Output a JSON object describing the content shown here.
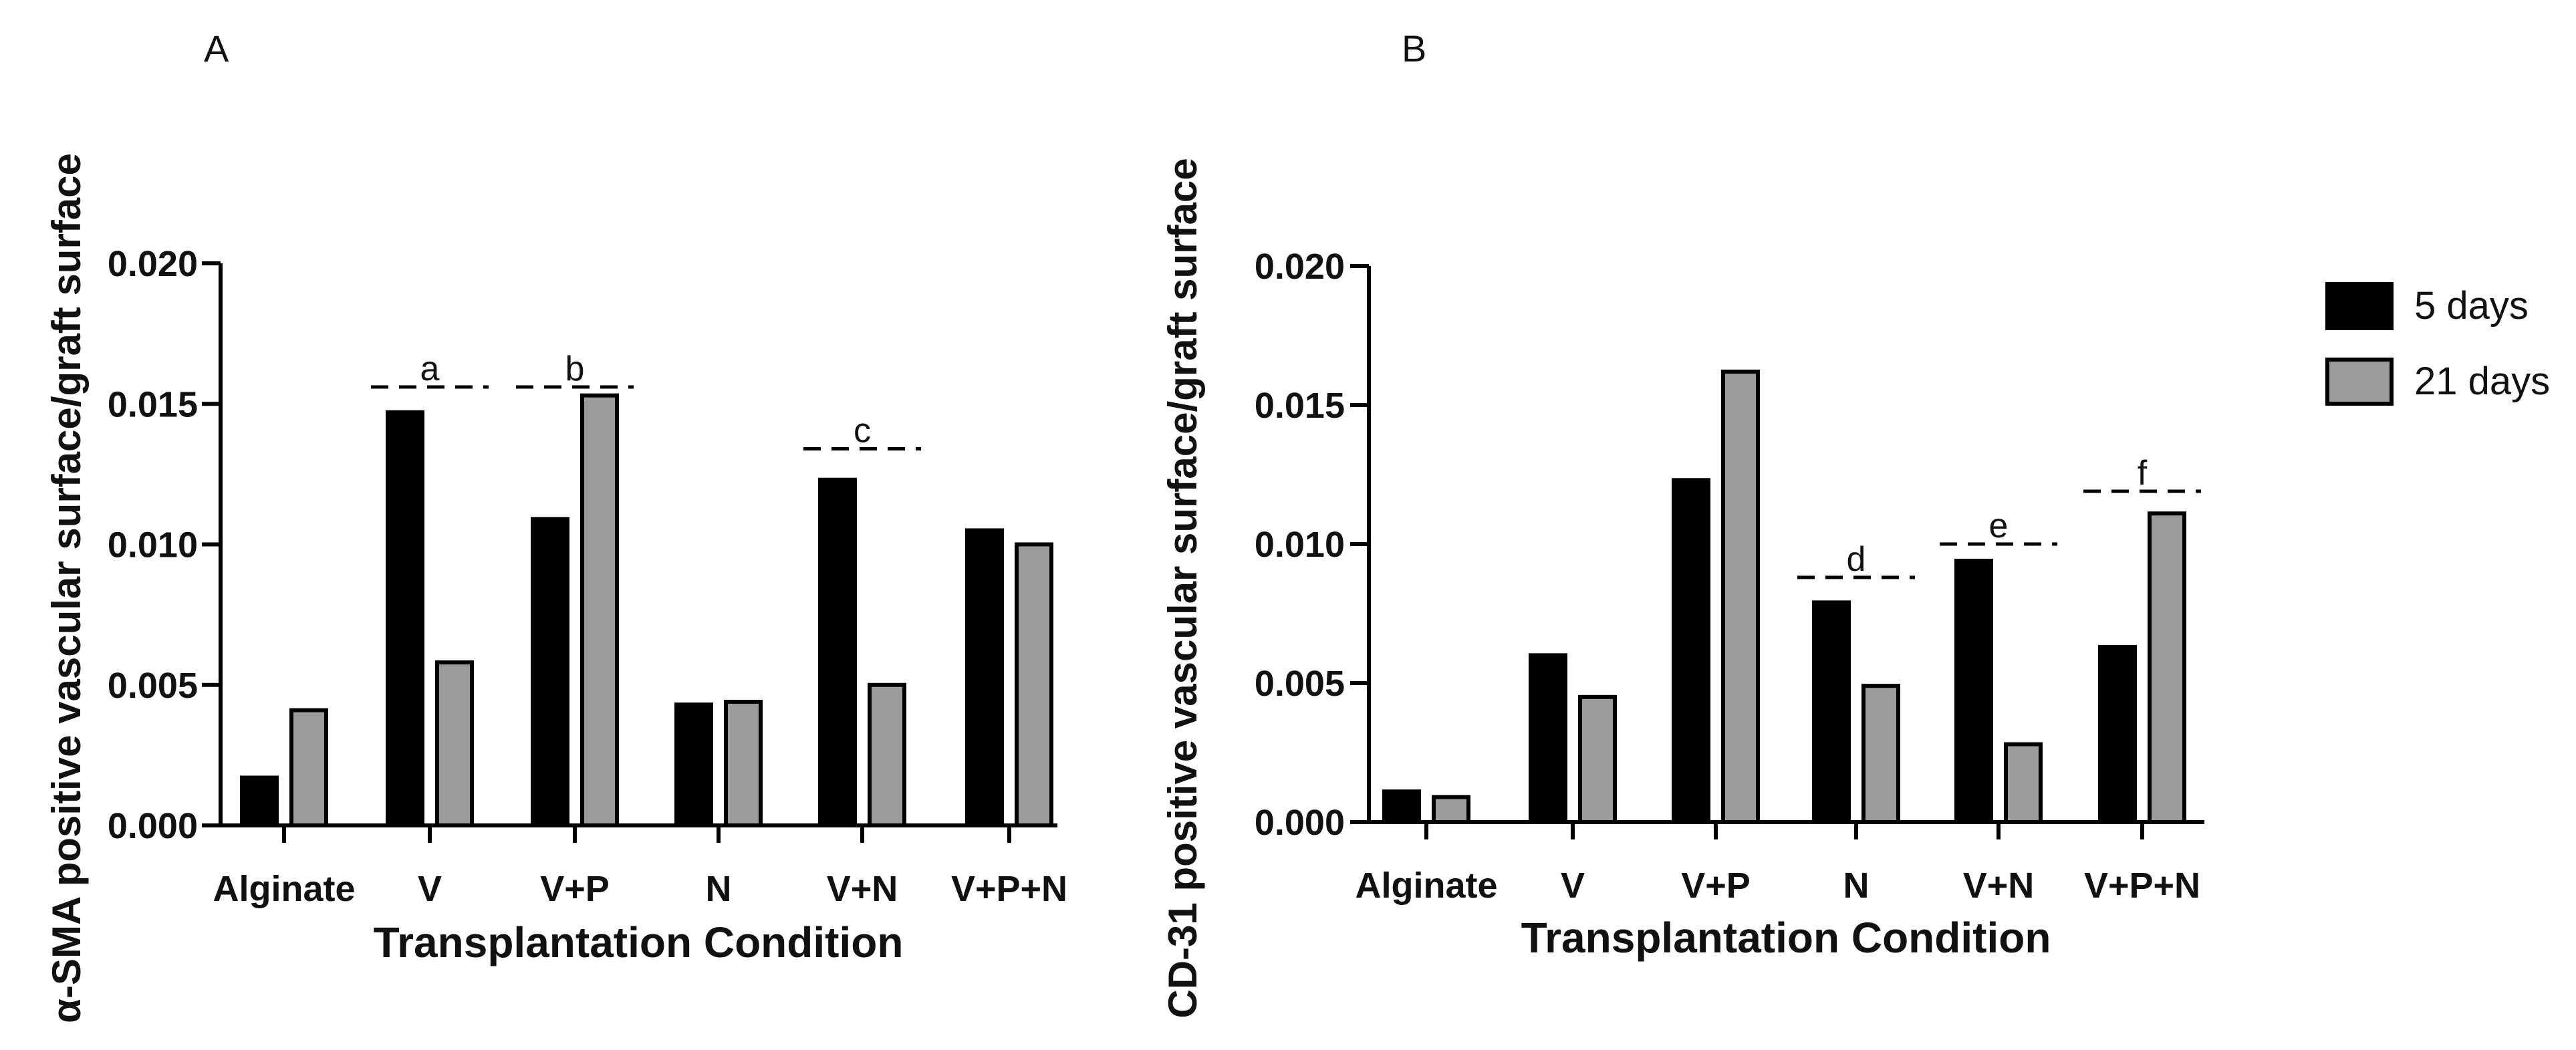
{
  "colors": {
    "series_5_days": "#000000",
    "series_21_days": "#9b9b9b",
    "outline": "#000000"
  },
  "legend": {
    "placement": "right",
    "items": [
      {
        "label": "5 days",
        "color": "#000000"
      },
      {
        "label": "21 days",
        "color": "#9b9b9b"
      }
    ]
  },
  "chart_data": [
    {
      "panel": "A",
      "type": "bar",
      "ylabel": "α-SMA  positive vascular surface/graft surface",
      "xlabel": "Transplantation Condition",
      "categories": [
        "Alginate",
        "V",
        "V+P",
        "N",
        "V+N",
        "V+P+N"
      ],
      "ylim": [
        0,
        0.02
      ],
      "yticks": [
        "0.000",
        "0.005",
        "0.010",
        "0.015",
        "0.020"
      ],
      "series": [
        {
          "name": "5 days",
          "values": [
            0.0017,
            0.0147,
            0.0109,
            0.0043,
            0.0123,
            0.0105
          ]
        },
        {
          "name": "21 days",
          "values": [
            0.0041,
            0.0058,
            0.0153,
            0.0044,
            0.005,
            0.01
          ]
        }
      ],
      "annotations": [
        {
          "label": "a",
          "category": "V",
          "y": 0.0156
        },
        {
          "label": "b",
          "category": "V+P",
          "y": 0.0156
        },
        {
          "label": "c",
          "category": "V+N",
          "y": 0.0134
        }
      ]
    },
    {
      "panel": "B",
      "type": "bar",
      "ylabel": "CD-31  positive vascular surface/graft surface",
      "xlabel": "Transplantation Condition",
      "categories": [
        "Alginate",
        "V",
        "V+P",
        "N",
        "V+N",
        "V+P+N"
      ],
      "ylim": [
        0,
        0.02
      ],
      "yticks": [
        "0.000",
        "0.005",
        "0.010",
        "0.015",
        "0.020"
      ],
      "series": [
        {
          "name": "5 days",
          "values": [
            0.0011,
            0.006,
            0.0123,
            0.0079,
            0.0094,
            0.0063
          ]
        },
        {
          "name": "21 days",
          "values": [
            0.0009,
            0.0045,
            0.0162,
            0.0049,
            0.0028,
            0.0111
          ]
        }
      ],
      "annotations": [
        {
          "label": "d",
          "category": "N",
          "y": 0.0088
        },
        {
          "label": "e",
          "category": "V+N",
          "y": 0.01
        },
        {
          "label": "f",
          "category": "V+P+N",
          "y": 0.0119
        }
      ]
    }
  ]
}
